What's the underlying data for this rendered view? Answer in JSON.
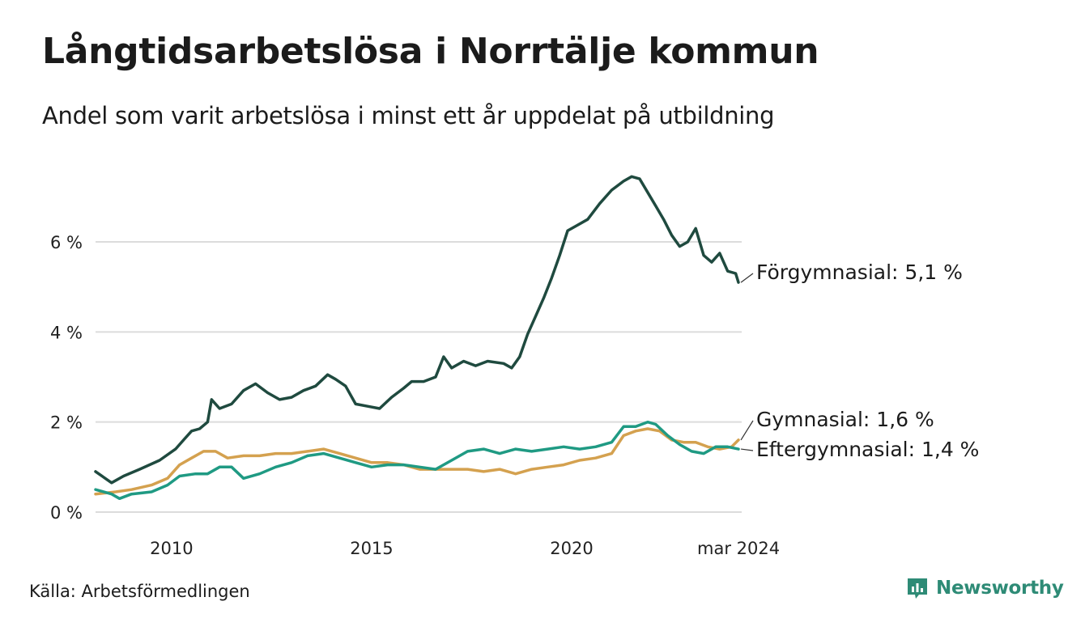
{
  "title": "Långtidsarbetslösa i Norrtälje kommun",
  "subtitle": "Andel som varit arbetslösa i minst ett år uppdelat på utbildning",
  "source": "Källa: Arbetsförmedlingen",
  "brand": "Newsworthy",
  "colors": {
    "forgymnasial": "#1f4a3f",
    "gymnasial": "#d4a14f",
    "eftergymnasial": "#1f9a83",
    "grid": "#dcdcdc",
    "brand": "#2e8b76"
  },
  "chart_data": {
    "type": "line",
    "title": "Långtidsarbetslösa i Norrtälje kommun",
    "xlabel": "",
    "ylabel": "",
    "xlim": [
      2008.1,
      2024.25
    ],
    "ylim": [
      0,
      7.6
    ],
    "yticks": [
      {
        "value": 0,
        "label": "0 %"
      },
      {
        "value": 2,
        "label": "2 %"
      },
      {
        "value": 4,
        "label": "4 %"
      },
      {
        "value": 6,
        "label": "6 %"
      }
    ],
    "xticks": [
      {
        "value": 2010,
        "label": "2010"
      },
      {
        "value": 2015,
        "label": "2015"
      },
      {
        "value": 2020,
        "label": "2020"
      },
      {
        "value": 2024.17,
        "label": "mar 2024"
      }
    ],
    "grid": true,
    "series": [
      {
        "name": "Förgymnasial",
        "label": "Förgymnasial: 5,1 %",
        "color_key": "forgymnasial",
        "points": [
          [
            2008.1,
            0.9
          ],
          [
            2008.5,
            0.65
          ],
          [
            2008.8,
            0.8
          ],
          [
            2009.2,
            0.95
          ],
          [
            2009.7,
            1.15
          ],
          [
            2010.1,
            1.4
          ],
          [
            2010.3,
            1.6
          ],
          [
            2010.5,
            1.8
          ],
          [
            2010.7,
            1.85
          ],
          [
            2010.9,
            2.0
          ],
          [
            2011.0,
            2.5
          ],
          [
            2011.2,
            2.3
          ],
          [
            2011.5,
            2.4
          ],
          [
            2011.8,
            2.7
          ],
          [
            2012.1,
            2.85
          ],
          [
            2012.4,
            2.65
          ],
          [
            2012.7,
            2.5
          ],
          [
            2013.0,
            2.55
          ],
          [
            2013.3,
            2.7
          ],
          [
            2013.6,
            2.8
          ],
          [
            2013.9,
            3.05
          ],
          [
            2014.1,
            2.95
          ],
          [
            2014.35,
            2.8
          ],
          [
            2014.6,
            2.4
          ],
          [
            2014.9,
            2.35
          ],
          [
            2015.2,
            2.3
          ],
          [
            2015.5,
            2.55
          ],
          [
            2015.8,
            2.75
          ],
          [
            2016.0,
            2.9
          ],
          [
            2016.3,
            2.9
          ],
          [
            2016.6,
            3.0
          ],
          [
            2016.8,
            3.45
          ],
          [
            2017.0,
            3.2
          ],
          [
            2017.3,
            3.35
          ],
          [
            2017.6,
            3.25
          ],
          [
            2017.9,
            3.35
          ],
          [
            2018.3,
            3.3
          ],
          [
            2018.5,
            3.2
          ],
          [
            2018.7,
            3.45
          ],
          [
            2018.9,
            3.95
          ],
          [
            2019.1,
            4.35
          ],
          [
            2019.3,
            4.75
          ],
          [
            2019.5,
            5.2
          ],
          [
            2019.7,
            5.7
          ],
          [
            2019.9,
            6.25
          ],
          [
            2020.1,
            6.35
          ],
          [
            2020.4,
            6.5
          ],
          [
            2020.7,
            6.85
          ],
          [
            2021.0,
            7.15
          ],
          [
            2021.3,
            7.35
          ],
          [
            2021.5,
            7.45
          ],
          [
            2021.7,
            7.4
          ],
          [
            2021.9,
            7.1
          ],
          [
            2022.1,
            6.8
          ],
          [
            2022.3,
            6.5
          ],
          [
            2022.5,
            6.15
          ],
          [
            2022.7,
            5.9
          ],
          [
            2022.9,
            6.0
          ],
          [
            2023.1,
            6.3
          ],
          [
            2023.3,
            5.7
          ],
          [
            2023.5,
            5.55
          ],
          [
            2023.7,
            5.75
          ],
          [
            2023.9,
            5.35
          ],
          [
            2024.1,
            5.3
          ],
          [
            2024.17,
            5.1
          ]
        ]
      },
      {
        "name": "Gymnasial",
        "label": "Gymnasial: 1,6 %",
        "color_key": "gymnasial",
        "points": [
          [
            2008.1,
            0.4
          ],
          [
            2008.6,
            0.45
          ],
          [
            2009.0,
            0.5
          ],
          [
            2009.5,
            0.6
          ],
          [
            2009.9,
            0.75
          ],
          [
            2010.2,
            1.05
          ],
          [
            2010.5,
            1.2
          ],
          [
            2010.8,
            1.35
          ],
          [
            2011.1,
            1.35
          ],
          [
            2011.4,
            1.2
          ],
          [
            2011.8,
            1.25
          ],
          [
            2012.2,
            1.25
          ],
          [
            2012.6,
            1.3
          ],
          [
            2013.0,
            1.3
          ],
          [
            2013.4,
            1.35
          ],
          [
            2013.8,
            1.4
          ],
          [
            2014.2,
            1.3
          ],
          [
            2014.6,
            1.2
          ],
          [
            2015.0,
            1.1
          ],
          [
            2015.4,
            1.1
          ],
          [
            2015.8,
            1.05
          ],
          [
            2016.2,
            0.95
          ],
          [
            2016.6,
            0.95
          ],
          [
            2017.0,
            0.95
          ],
          [
            2017.4,
            0.95
          ],
          [
            2017.8,
            0.9
          ],
          [
            2018.2,
            0.95
          ],
          [
            2018.6,
            0.85
          ],
          [
            2019.0,
            0.95
          ],
          [
            2019.4,
            1.0
          ],
          [
            2019.8,
            1.05
          ],
          [
            2020.2,
            1.15
          ],
          [
            2020.6,
            1.2
          ],
          [
            2021.0,
            1.3
          ],
          [
            2021.3,
            1.7
          ],
          [
            2021.6,
            1.8
          ],
          [
            2021.9,
            1.85
          ],
          [
            2022.2,
            1.8
          ],
          [
            2022.5,
            1.6
          ],
          [
            2022.8,
            1.55
          ],
          [
            2023.1,
            1.55
          ],
          [
            2023.4,
            1.45
          ],
          [
            2023.7,
            1.4
          ],
          [
            2024.0,
            1.45
          ],
          [
            2024.17,
            1.6
          ]
        ]
      },
      {
        "name": "Eftergymnasial",
        "label": "Eftergymnasial: 1,4 %",
        "color_key": "eftergymnasial",
        "points": [
          [
            2008.1,
            0.5
          ],
          [
            2008.5,
            0.4
          ],
          [
            2008.7,
            0.3
          ],
          [
            2009.0,
            0.4
          ],
          [
            2009.5,
            0.45
          ],
          [
            2009.9,
            0.6
          ],
          [
            2010.2,
            0.8
          ],
          [
            2010.6,
            0.85
          ],
          [
            2010.9,
            0.85
          ],
          [
            2011.2,
            1.0
          ],
          [
            2011.5,
            1.0
          ],
          [
            2011.8,
            0.75
          ],
          [
            2012.2,
            0.85
          ],
          [
            2012.6,
            1.0
          ],
          [
            2013.0,
            1.1
          ],
          [
            2013.4,
            1.25
          ],
          [
            2013.8,
            1.3
          ],
          [
            2014.2,
            1.2
          ],
          [
            2014.6,
            1.1
          ],
          [
            2015.0,
            1.0
          ],
          [
            2015.4,
            1.05
          ],
          [
            2015.8,
            1.05
          ],
          [
            2016.2,
            1.0
          ],
          [
            2016.6,
            0.95
          ],
          [
            2017.0,
            1.15
          ],
          [
            2017.4,
            1.35
          ],
          [
            2017.8,
            1.4
          ],
          [
            2018.2,
            1.3
          ],
          [
            2018.6,
            1.4
          ],
          [
            2019.0,
            1.35
          ],
          [
            2019.4,
            1.4
          ],
          [
            2019.8,
            1.45
          ],
          [
            2020.2,
            1.4
          ],
          [
            2020.6,
            1.45
          ],
          [
            2021.0,
            1.55
          ],
          [
            2021.3,
            1.9
          ],
          [
            2021.6,
            1.9
          ],
          [
            2021.9,
            2.0
          ],
          [
            2022.1,
            1.95
          ],
          [
            2022.4,
            1.7
          ],
          [
            2022.7,
            1.5
          ],
          [
            2023.0,
            1.35
          ],
          [
            2023.3,
            1.3
          ],
          [
            2023.6,
            1.45
          ],
          [
            2023.9,
            1.45
          ],
          [
            2024.17,
            1.4
          ]
        ]
      }
    ]
  }
}
